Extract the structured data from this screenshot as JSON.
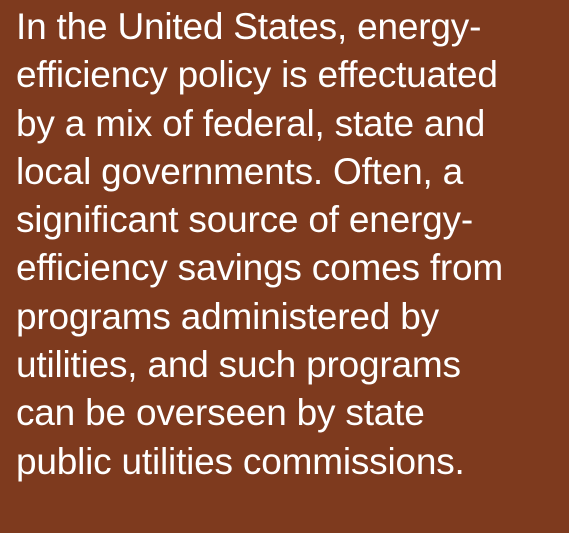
{
  "paragraph": {
    "lines": [
      "In the United States, energy-",
      "efficiency policy is effectuated",
      "by a mix of federal, state and",
      "local governments. Often, a",
      "significant source of energy-",
      "efficiency savings comes from",
      "programs administered by",
      "utilities, and such programs",
      "can be overseen by state",
      "public utilities commissions."
    ]
  }
}
